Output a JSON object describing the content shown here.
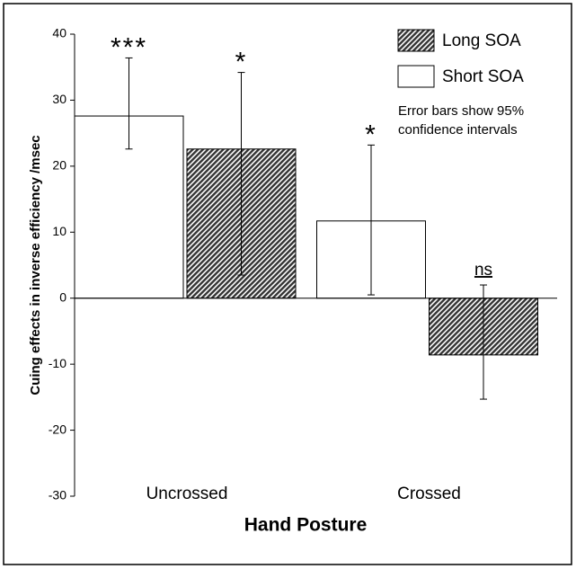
{
  "chart_data": {
    "type": "bar",
    "y_label": "Cuing effects in inverse efficiency /msec",
    "x_label": "Hand Posture",
    "categories": [
      "Uncrossed",
      "Crossed"
    ],
    "series": [
      {
        "name": "Short SOA",
        "color": "#ffffff",
        "values": [
          27.6,
          11.7
        ],
        "ci_high": [
          36.4,
          23.2
        ],
        "ci_low": [
          22.6,
          0.5
        ],
        "sig_labels": [
          "***",
          "*"
        ]
      },
      {
        "name": "Long SOA",
        "color": "hatch",
        "values": [
          22.6,
          -8.6
        ],
        "ci_high": [
          34.2,
          2.0
        ],
        "ci_low": [
          3.5,
          -15.3
        ],
        "sig_labels": [
          "*",
          "ns"
        ]
      }
    ],
    "note": [
      "Error bars show 95%",
      "confidence intervals"
    ],
    "ylim": [
      -30,
      40
    ],
    "yticks": [
      -30,
      -20,
      -10,
      0,
      10,
      20,
      30,
      40
    ]
  }
}
